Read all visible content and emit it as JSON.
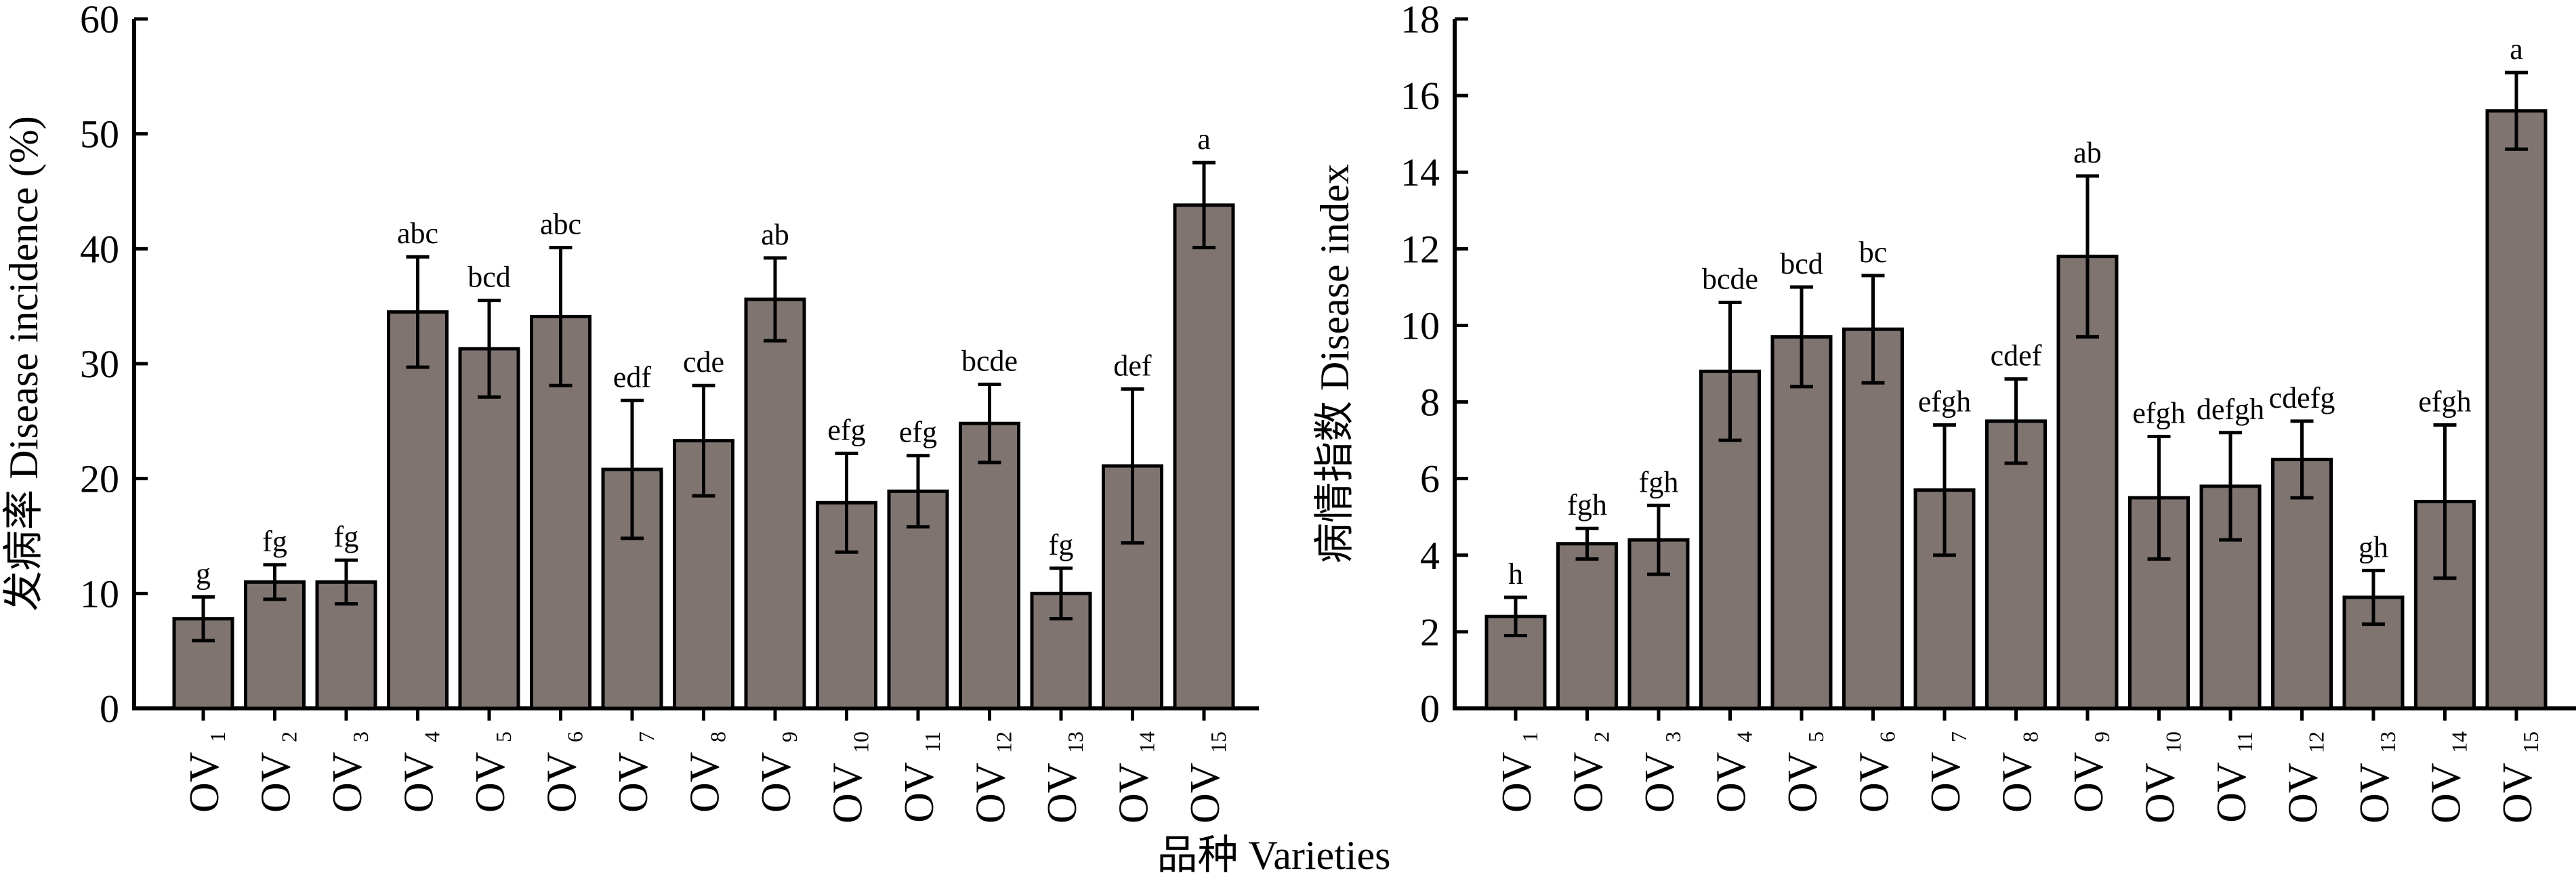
{
  "chart_data": [
    {
      "type": "bar",
      "title": "",
      "ylabel": "发病率 Disease incidence (%)",
      "ylim": [
        0,
        60
      ],
      "yticks": [
        0,
        10,
        20,
        30,
        40,
        50,
        60
      ],
      "grid": false,
      "categories": [
        {
          "base": "OV",
          "sub": "1"
        },
        {
          "base": "OV",
          "sub": "2"
        },
        {
          "base": "OV",
          "sub": "3"
        },
        {
          "base": "OV",
          "sub": "4"
        },
        {
          "base": "OV",
          "sub": "5"
        },
        {
          "base": "OV",
          "sub": "6"
        },
        {
          "base": "OV",
          "sub": "7"
        },
        {
          "base": "OV",
          "sub": "8"
        },
        {
          "base": "OV",
          "sub": "9"
        },
        {
          "base": "OV",
          "sub": "10"
        },
        {
          "base": "OV",
          "sub": "11"
        },
        {
          "base": "OV",
          "sub": "12"
        },
        {
          "base": "OV",
          "sub": "13"
        },
        {
          "base": "OV",
          "sub": "14"
        },
        {
          "base": "OV",
          "sub": "15"
        }
      ],
      "values": [
        7.8,
        11.0,
        11.0,
        34.5,
        31.3,
        34.1,
        20.8,
        23.3,
        35.6,
        17.9,
        18.9,
        24.8,
        10.0,
        21.1,
        43.8
      ],
      "errors": [
        1.9,
        1.5,
        1.9,
        4.8,
        4.2,
        6.0,
        6.0,
        4.8,
        3.6,
        4.3,
        3.1,
        3.4,
        2.2,
        6.7,
        3.7
      ],
      "labels": [
        "g",
        "fg",
        "fg",
        "abc",
        "bcd",
        "abc",
        "edf",
        "cde",
        "ab",
        "efg",
        "efg",
        "bcde",
        "fg",
        "def",
        "a"
      ]
    },
    {
      "type": "bar",
      "title": "",
      "ylabel": "病情指数 Disease index",
      "ylim": [
        0,
        18
      ],
      "yticks": [
        0,
        2,
        4,
        6,
        8,
        10,
        12,
        14,
        16,
        18
      ],
      "grid": false,
      "categories": [
        {
          "base": "OV",
          "sub": "1"
        },
        {
          "base": "OV",
          "sub": "2"
        },
        {
          "base": "OV",
          "sub": "3"
        },
        {
          "base": "OV",
          "sub": "4"
        },
        {
          "base": "OV",
          "sub": "5"
        },
        {
          "base": "OV",
          "sub": "6"
        },
        {
          "base": "OV",
          "sub": "7"
        },
        {
          "base": "OV",
          "sub": "8"
        },
        {
          "base": "OV",
          "sub": "9"
        },
        {
          "base": "OV",
          "sub": "10"
        },
        {
          "base": "OV",
          "sub": "11"
        },
        {
          "base": "OV",
          "sub": "12"
        },
        {
          "base": "OV",
          "sub": "13"
        },
        {
          "base": "OV",
          "sub": "14"
        },
        {
          "base": "OV",
          "sub": "15"
        }
      ],
      "values": [
        2.4,
        4.3,
        4.4,
        8.8,
        9.7,
        9.9,
        5.7,
        7.5,
        11.8,
        5.5,
        5.8,
        6.5,
        2.9,
        5.4,
        15.6
      ],
      "errors": [
        0.5,
        0.4,
        0.9,
        1.8,
        1.3,
        1.4,
        1.7,
        1.1,
        2.1,
        1.6,
        1.4,
        1.0,
        0.7,
        2.0,
        1.0
      ],
      "labels": [
        "h",
        "fgh",
        "fgh",
        "bcde",
        "bcd",
        "bc",
        "efgh",
        "cdef",
        "ab",
        "efgh",
        "defgh",
        "cdefg",
        "gh",
        "efgh",
        "a"
      ]
    }
  ],
  "shared": {
    "xlabel": "品种 Varieties",
    "bar_color": "#7f7470",
    "edge_color": "#000000"
  }
}
